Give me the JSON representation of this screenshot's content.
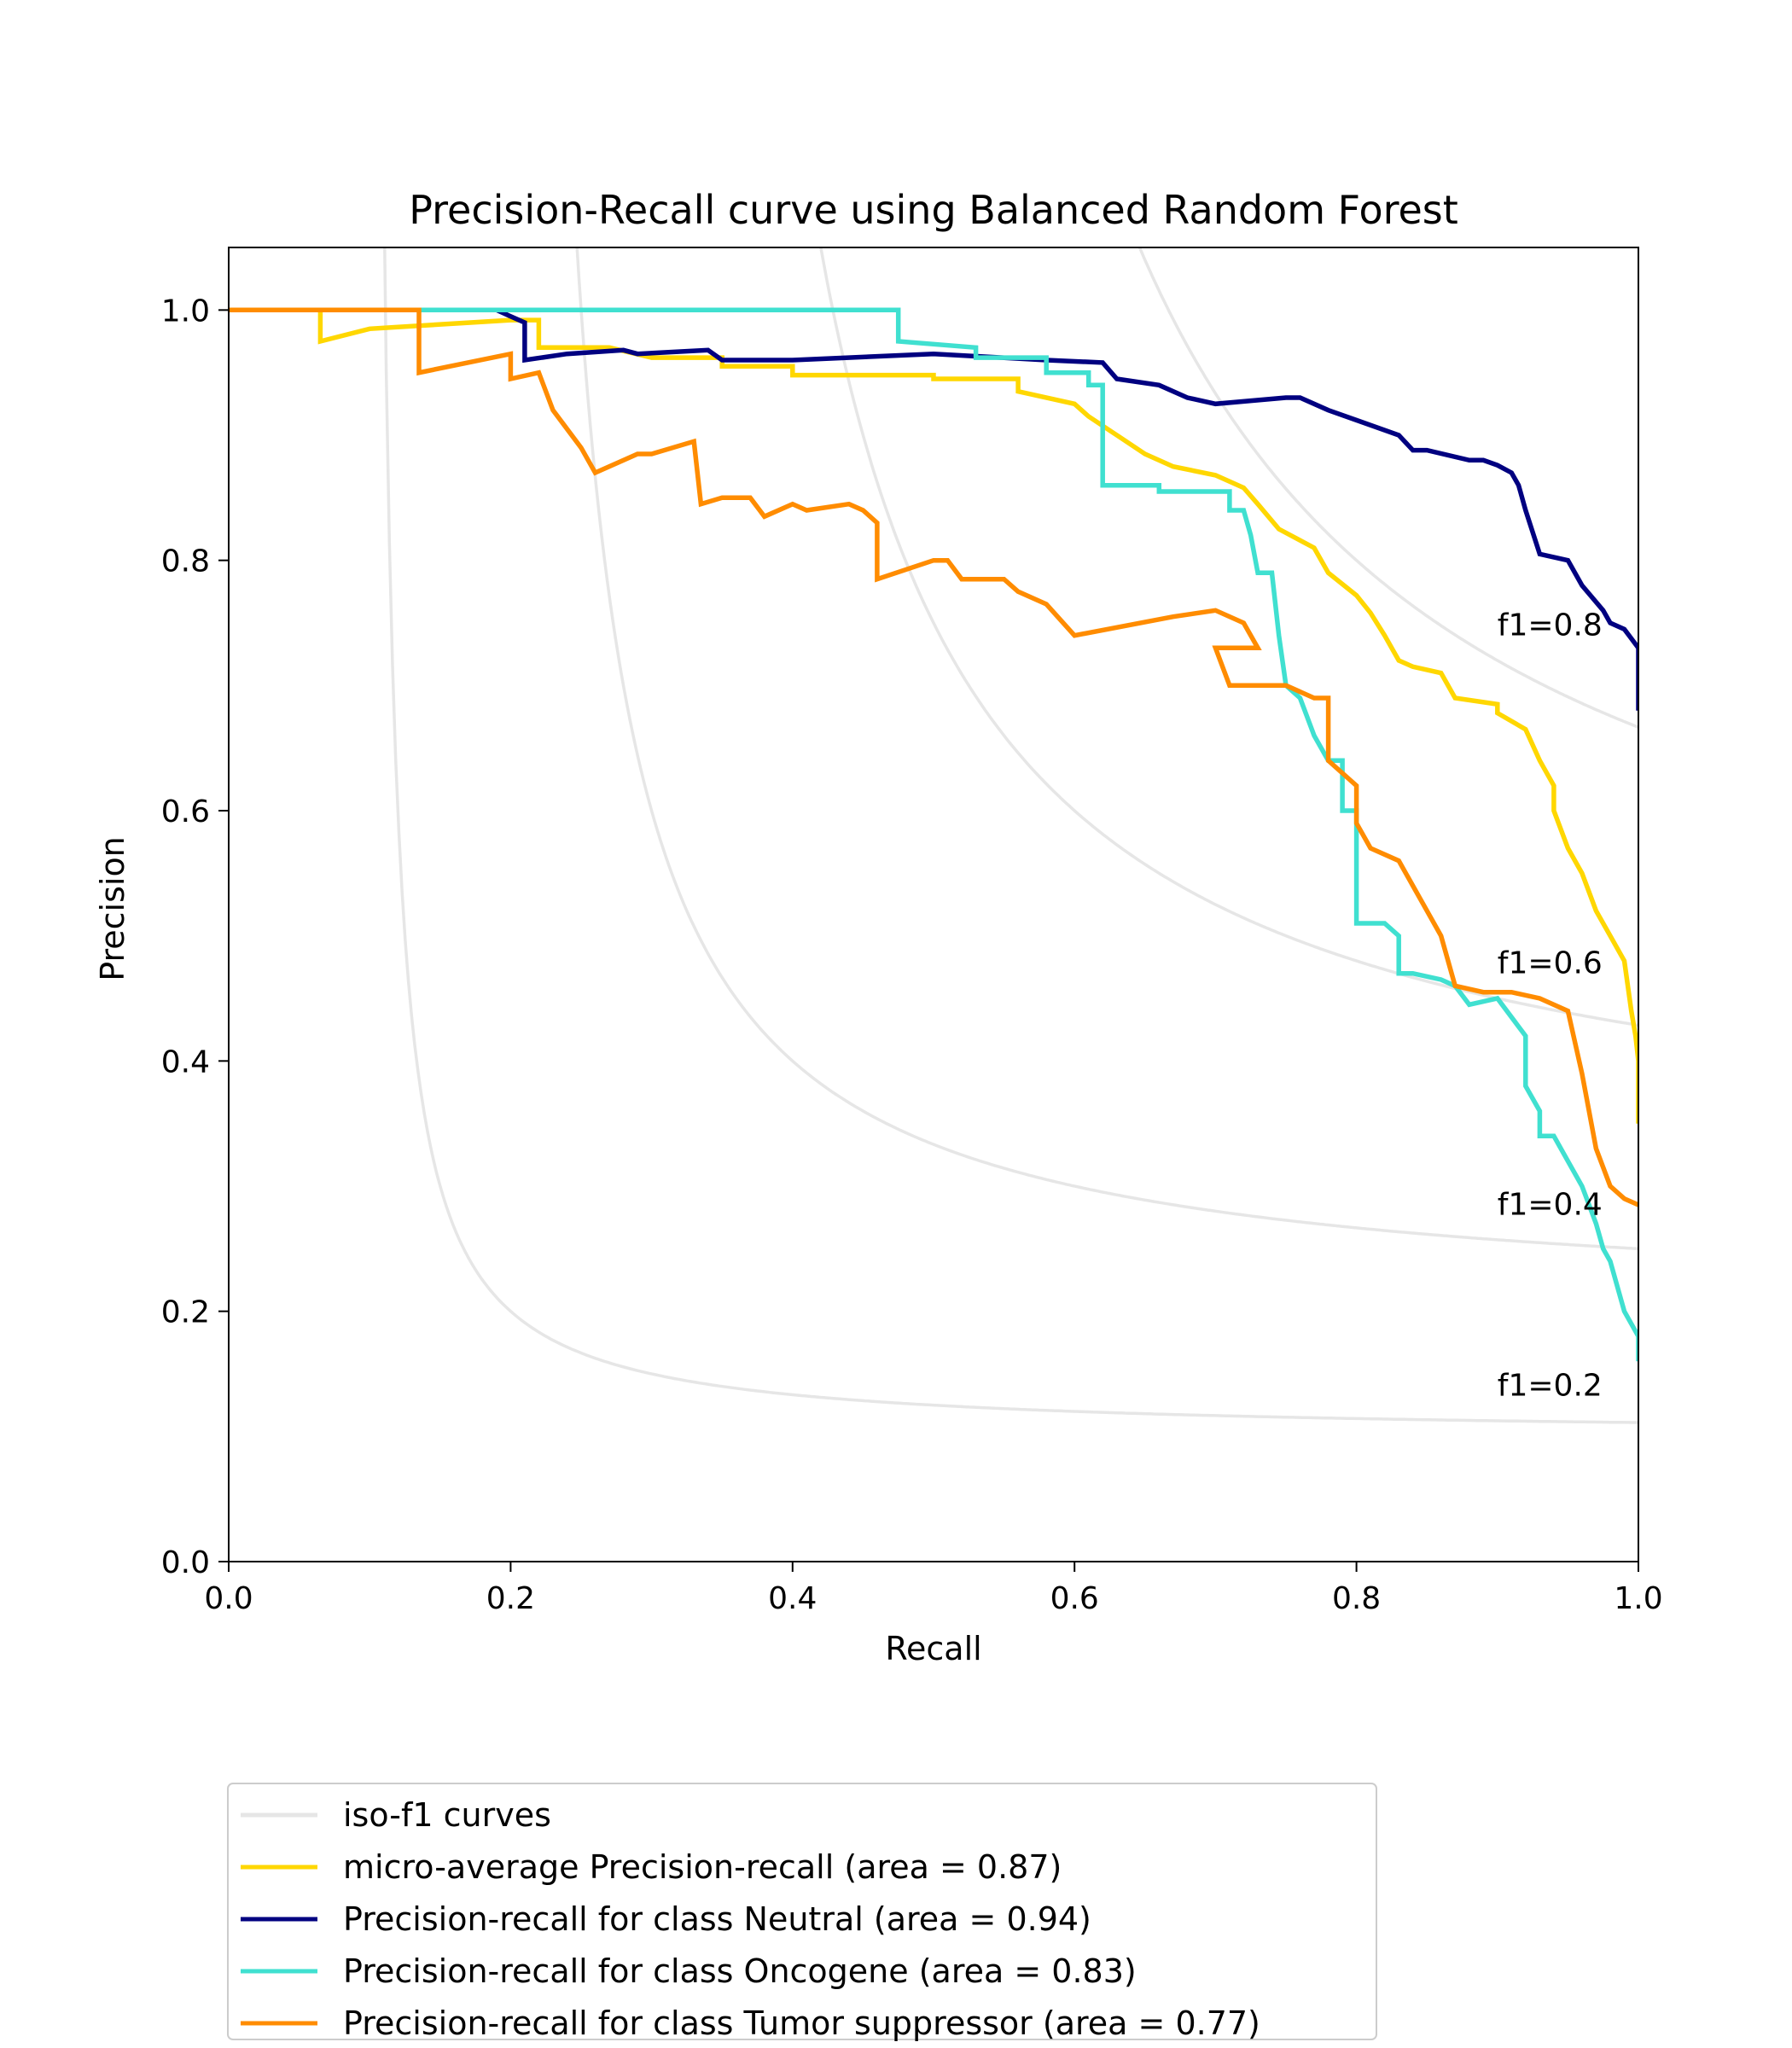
{
  "chart_data": {
    "type": "line",
    "title": "Precision-Recall curve using Balanced Random Forest",
    "xlabel": "Recall",
    "ylabel": "Precision",
    "xlim": [
      0.0,
      1.0
    ],
    "ylim": [
      0.0,
      1.05
    ],
    "xticks": [
      "0.0",
      "0.2",
      "0.4",
      "0.6",
      "0.8",
      "1.0"
    ],
    "yticks": [
      "0.0",
      "0.2",
      "0.4",
      "0.6",
      "0.8",
      "1.0"
    ],
    "grid": false,
    "legend_position": "bottom-left",
    "iso_f1": {
      "color": "#e6e6e6",
      "levels": [
        0.2,
        0.4,
        0.6,
        0.8
      ],
      "labels": [
        "f1=0.2",
        "f1=0.4",
        "f1=0.6",
        "f1=0.8"
      ]
    },
    "series": [
      {
        "name": "micro-average Precision-recall (area = 0.87)",
        "color": "#ffd700",
        "points": [
          [
            0,
            1.0
          ],
          [
            0.065,
            1.0
          ],
          [
            0.065,
            0.975
          ],
          [
            0.1,
            0.985
          ],
          [
            0.2,
            0.992
          ],
          [
            0.22,
            0.992
          ],
          [
            0.22,
            0.97
          ],
          [
            0.27,
            0.97
          ],
          [
            0.3,
            0.962
          ],
          [
            0.35,
            0.962
          ],
          [
            0.35,
            0.955
          ],
          [
            0.4,
            0.955
          ],
          [
            0.4,
            0.948
          ],
          [
            0.5,
            0.948
          ],
          [
            0.5,
            0.945
          ],
          [
            0.56,
            0.945
          ],
          [
            0.56,
            0.935
          ],
          [
            0.6,
            0.925
          ],
          [
            0.61,
            0.915
          ],
          [
            0.63,
            0.9
          ],
          [
            0.65,
            0.885
          ],
          [
            0.67,
            0.875
          ],
          [
            0.7,
            0.868
          ],
          [
            0.72,
            0.858
          ],
          [
            0.73,
            0.845
          ],
          [
            0.745,
            0.825
          ],
          [
            0.77,
            0.81
          ],
          [
            0.78,
            0.79
          ],
          [
            0.8,
            0.772
          ],
          [
            0.81,
            0.758
          ],
          [
            0.82,
            0.74
          ],
          [
            0.83,
            0.72
          ],
          [
            0.84,
            0.715
          ],
          [
            0.86,
            0.71
          ],
          [
            0.87,
            0.69
          ],
          [
            0.9,
            0.685
          ],
          [
            0.9,
            0.678
          ],
          [
            0.92,
            0.665
          ],
          [
            0.93,
            0.64
          ],
          [
            0.94,
            0.62
          ],
          [
            0.94,
            0.6
          ],
          [
            0.95,
            0.57
          ],
          [
            0.96,
            0.55
          ],
          [
            0.97,
            0.52
          ],
          [
            0.98,
            0.5
          ],
          [
            0.99,
            0.48
          ],
          [
            0.995,
            0.44
          ],
          [
            0.998,
            0.42
          ],
          [
            1.0,
            0.4
          ],
          [
            1.0,
            0.35
          ]
        ]
      },
      {
        "name": "Precision-recall for class Neutral (area = 0.94)",
        "color": "#000080",
        "points": [
          [
            0,
            1.0
          ],
          [
            0.19,
            1.0
          ],
          [
            0.2,
            0.995
          ],
          [
            0.21,
            0.99
          ],
          [
            0.21,
            0.96
          ],
          [
            0.24,
            0.965
          ],
          [
            0.28,
            0.968
          ],
          [
            0.29,
            0.965
          ],
          [
            0.34,
            0.968
          ],
          [
            0.35,
            0.96
          ],
          [
            0.4,
            0.96
          ],
          [
            0.5,
            0.965
          ],
          [
            0.58,
            0.96
          ],
          [
            0.62,
            0.958
          ],
          [
            0.63,
            0.945
          ],
          [
            0.66,
            0.94
          ],
          [
            0.68,
            0.93
          ],
          [
            0.7,
            0.925
          ],
          [
            0.75,
            0.93
          ],
          [
            0.76,
            0.93
          ],
          [
            0.78,
            0.92
          ],
          [
            0.8,
            0.912
          ],
          [
            0.83,
            0.9
          ],
          [
            0.84,
            0.888
          ],
          [
            0.85,
            0.888
          ],
          [
            0.88,
            0.88
          ],
          [
            0.89,
            0.88
          ],
          [
            0.9,
            0.876
          ],
          [
            0.91,
            0.87
          ],
          [
            0.915,
            0.86
          ],
          [
            0.92,
            0.84
          ],
          [
            0.93,
            0.805
          ],
          [
            0.95,
            0.8
          ],
          [
            0.96,
            0.78
          ],
          [
            0.975,
            0.76
          ],
          [
            0.98,
            0.75
          ],
          [
            0.99,
            0.745
          ],
          [
            1.0,
            0.73
          ],
          [
            1.0,
            0.68
          ]
        ]
      },
      {
        "name": "Precision-recall for class Oncogene (area = 0.83)",
        "color": "#40e0d0",
        "points": [
          [
            0,
            1.0
          ],
          [
            0.475,
            1.0
          ],
          [
            0.475,
            0.975
          ],
          [
            0.53,
            0.97
          ],
          [
            0.53,
            0.962
          ],
          [
            0.58,
            0.962
          ],
          [
            0.58,
            0.95
          ],
          [
            0.61,
            0.95
          ],
          [
            0.61,
            0.94
          ],
          [
            0.62,
            0.94
          ],
          [
            0.62,
            0.86
          ],
          [
            0.66,
            0.86
          ],
          [
            0.66,
            0.855
          ],
          [
            0.71,
            0.855
          ],
          [
            0.71,
            0.84
          ],
          [
            0.72,
            0.84
          ],
          [
            0.725,
            0.82
          ],
          [
            0.73,
            0.79
          ],
          [
            0.74,
            0.79
          ],
          [
            0.745,
            0.74
          ],
          [
            0.75,
            0.7
          ],
          [
            0.76,
            0.69
          ],
          [
            0.77,
            0.66
          ],
          [
            0.78,
            0.64
          ],
          [
            0.79,
            0.64
          ],
          [
            0.79,
            0.6
          ],
          [
            0.8,
            0.6
          ],
          [
            0.8,
            0.51
          ],
          [
            0.82,
            0.51
          ],
          [
            0.83,
            0.5
          ],
          [
            0.83,
            0.47
          ],
          [
            0.84,
            0.47
          ],
          [
            0.86,
            0.465
          ],
          [
            0.87,
            0.46
          ],
          [
            0.88,
            0.445
          ],
          [
            0.9,
            0.45
          ],
          [
            0.92,
            0.42
          ],
          [
            0.92,
            0.38
          ],
          [
            0.93,
            0.36
          ],
          [
            0.93,
            0.34
          ],
          [
            0.94,
            0.34
          ],
          [
            0.95,
            0.32
          ],
          [
            0.96,
            0.3
          ],
          [
            0.965,
            0.285
          ],
          [
            0.97,
            0.27
          ],
          [
            0.975,
            0.25
          ],
          [
            0.98,
            0.24
          ],
          [
            0.985,
            0.22
          ],
          [
            0.99,
            0.2
          ],
          [
            0.995,
            0.19
          ],
          [
            1.0,
            0.18
          ],
          [
            1.0,
            0.16
          ]
        ]
      },
      {
        "name": "Precision-recall for class Tumor suppressor (area = 0.77)",
        "color": "#ff8c00",
        "points": [
          [
            0,
            1.0
          ],
          [
            0.135,
            1.0
          ],
          [
            0.135,
            0.95
          ],
          [
            0.2,
            0.965
          ],
          [
            0.2,
            0.945
          ],
          [
            0.22,
            0.95
          ],
          [
            0.23,
            0.92
          ],
          [
            0.25,
            0.89
          ],
          [
            0.26,
            0.87
          ],
          [
            0.29,
            0.885
          ],
          [
            0.3,
            0.885
          ],
          [
            0.33,
            0.895
          ],
          [
            0.335,
            0.845
          ],
          [
            0.35,
            0.85
          ],
          [
            0.37,
            0.85
          ],
          [
            0.38,
            0.835
          ],
          [
            0.4,
            0.845
          ],
          [
            0.41,
            0.84
          ],
          [
            0.44,
            0.845
          ],
          [
            0.45,
            0.84
          ],
          [
            0.46,
            0.83
          ],
          [
            0.46,
            0.785
          ],
          [
            0.5,
            0.8
          ],
          [
            0.51,
            0.8
          ],
          [
            0.52,
            0.785
          ],
          [
            0.55,
            0.785
          ],
          [
            0.56,
            0.775
          ],
          [
            0.58,
            0.765
          ],
          [
            0.6,
            0.74
          ],
          [
            0.67,
            0.755
          ],
          [
            0.7,
            0.76
          ],
          [
            0.72,
            0.75
          ],
          [
            0.73,
            0.73
          ],
          [
            0.7,
            0.73
          ],
          [
            0.71,
            0.7
          ],
          [
            0.73,
            0.7
          ],
          [
            0.75,
            0.7
          ],
          [
            0.77,
            0.69
          ],
          [
            0.78,
            0.69
          ],
          [
            0.78,
            0.64
          ],
          [
            0.8,
            0.62
          ],
          [
            0.8,
            0.59
          ],
          [
            0.81,
            0.57
          ],
          [
            0.83,
            0.56
          ],
          [
            0.84,
            0.54
          ],
          [
            0.85,
            0.52
          ],
          [
            0.86,
            0.5
          ],
          [
            0.87,
            0.46
          ],
          [
            0.89,
            0.455
          ],
          [
            0.91,
            0.455
          ],
          [
            0.93,
            0.45
          ],
          [
            0.95,
            0.44
          ],
          [
            0.96,
            0.39
          ],
          [
            0.97,
            0.33
          ],
          [
            0.98,
            0.3
          ],
          [
            0.99,
            0.29
          ],
          [
            1.0,
            0.285
          ]
        ]
      }
    ]
  },
  "legend": {
    "items": [
      "iso-f1 curves",
      "micro-average Precision-recall (area = 0.87)",
      "Precision-recall for class Neutral (area = 0.94)",
      "Precision-recall for class Oncogene (area = 0.83)",
      "Precision-recall for class Tumor suppressor (area = 0.77)"
    ]
  }
}
